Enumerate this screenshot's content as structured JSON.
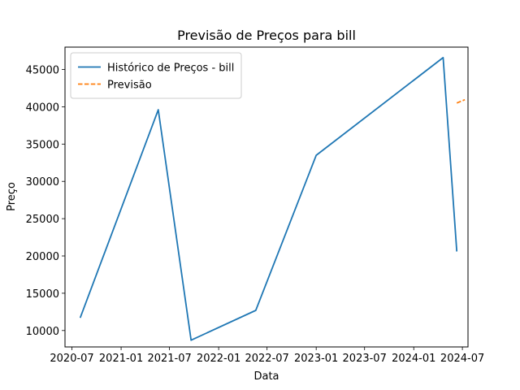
{
  "chart_data": {
    "type": "line",
    "title": "Previsão de Preços para bill",
    "xlabel": "Data",
    "ylabel": "Preço",
    "x_axis_type": "date",
    "xlim": [
      "2020-06-05",
      "2024-07-22"
    ],
    "ylim": [
      7800,
      48000
    ],
    "x_tick_labels": [
      {
        "date": "2020-07-01",
        "label": "2020-07"
      },
      {
        "date": "2021-01-01",
        "label": "2021-01"
      },
      {
        "date": "2021-07-01",
        "label": "2021-07"
      },
      {
        "date": "2022-01-01",
        "label": "2022-01"
      },
      {
        "date": "2022-07-01",
        "label": "2022-07"
      },
      {
        "date": "2023-01-01",
        "label": "2023-01"
      },
      {
        "date": "2023-07-01",
        "label": "2023-07"
      },
      {
        "date": "2024-01-01",
        "label": "2024-01"
      },
      {
        "date": "2024-07-01",
        "label": "2024-07"
      }
    ],
    "y_ticks": [
      10000,
      15000,
      20000,
      25000,
      30000,
      35000,
      40000,
      45000
    ],
    "grid": false,
    "legend_position": "top-left",
    "series": [
      {
        "name": "Histórico de Preços - bill",
        "color": "#1f77b4",
        "line_style": "solid",
        "points": [
          {
            "x": "2020-08-01",
            "y": 11700
          },
          {
            "x": "2021-05-20",
            "y": 39600
          },
          {
            "x": "2021-09-20",
            "y": 8700
          },
          {
            "x": "2022-05-20",
            "y": 12700
          },
          {
            "x": "2023-01-01",
            "y": 33500
          },
          {
            "x": "2024-04-20",
            "y": 46600
          },
          {
            "x": "2024-06-10",
            "y": 20600
          }
        ]
      },
      {
        "name": "Previsão",
        "color": "#ff7f0e",
        "line_style": "dashed",
        "points": [
          {
            "x": "2024-06-10",
            "y": 40500
          },
          {
            "x": "2024-07-10",
            "y": 40950
          }
        ]
      }
    ]
  }
}
